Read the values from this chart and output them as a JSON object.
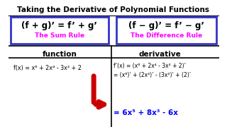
{
  "title": "Taking the Derivative of Polynomial Functions",
  "bg_color": "#ffffff",
  "title_color": "#000000",
  "box_border_color": "#3333cc",
  "sum_rule_text": "(f + g)’ = f’ + g’",
  "sum_rule_label": "The Sum Rule",
  "diff_rule_text": "(f − g)’ = f’ − g’",
  "diff_rule_label": "The Difference Rule",
  "rule_label_color": "#ff00ff",
  "rule_text_color": "#000000",
  "col1_header": "function",
  "col2_header": "derivative",
  "header_color": "#000000",
  "func_text": "f(x) = x⁶ + 2x⁴ - 3x² + 2",
  "deriv_line1": "f’(x) = (x⁶ + 2x⁴ - 3x² + 2)’",
  "deriv_line2": "= (x⁶)’ + (2x⁴)’ - (3x²)’ + (2)’",
  "deriv_line3": "= 6x⁵ + 8x³ - 6x",
  "deriv_line3_color": "#0000ff",
  "arrow_color": "#cc0000",
  "divider_color": "#000000"
}
